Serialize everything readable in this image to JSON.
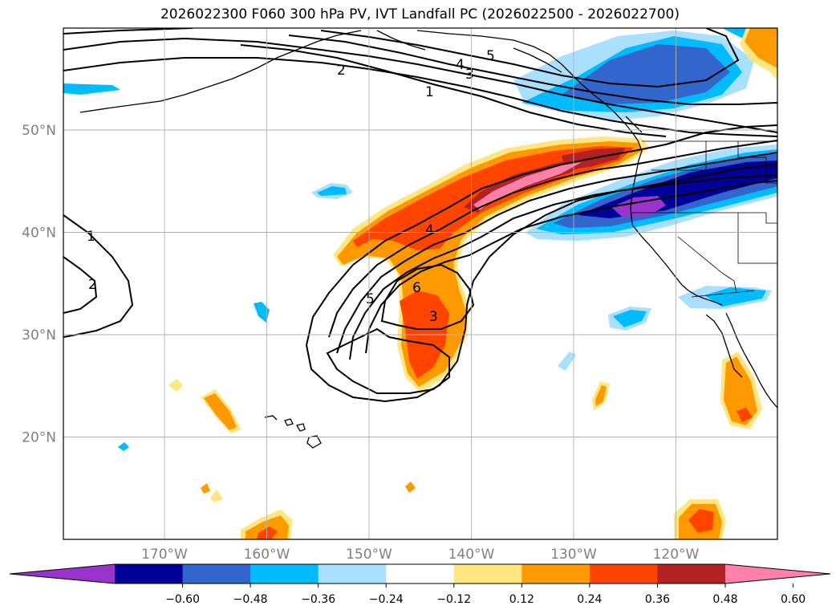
{
  "title": "2026022300 F060 300 hPa PV, IVT Landfall PC (2026022500 - 2026022700)",
  "lat_ticks": [
    {
      "lat": 50,
      "label": "50°N"
    },
    {
      "lat": 40,
      "label": "40°N"
    },
    {
      "lat": 30,
      "label": "30°N"
    },
    {
      "lat": 20,
      "label": "20°N"
    }
  ],
  "lon_ticks": [
    {
      "lon": -170,
      "label": "170°W"
    },
    {
      "lon": -160,
      "label": "160°W"
    },
    {
      "lon": -150,
      "label": "150°W"
    },
    {
      "lon": -140,
      "label": "140°W"
    },
    {
      "lon": -130,
      "label": "130°W"
    },
    {
      "lon": -120,
      "label": "120°W"
    }
  ],
  "colorbar": {
    "colors": [
      "#9933cc",
      "#000099",
      "#3366cc",
      "#00bbff",
      "#aae0ff",
      "#ffffff",
      "#ffe680",
      "#ff9900",
      "#ff4400",
      "#b22222",
      "#ff80a8"
    ],
    "labels": [
      "−0.60",
      "−0.48",
      "−0.36",
      "−0.24",
      "−0.12",
      "0.12",
      "0.24",
      "0.36",
      "0.48",
      "0.60"
    ]
  },
  "contour_labels": [
    "1",
    "2",
    "1",
    "2",
    "3",
    "4",
    "5",
    "4",
    "5",
    "6",
    "3"
  ]
}
